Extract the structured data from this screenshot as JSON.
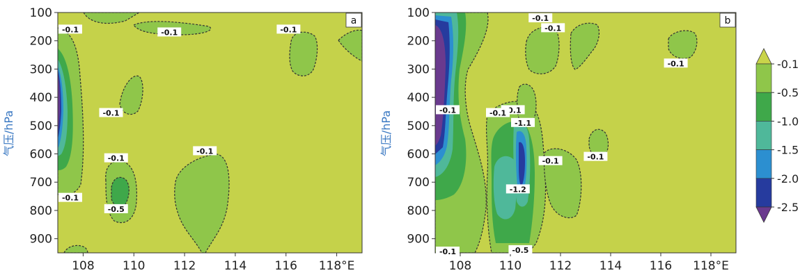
{
  "chart_data": [
    {
      "type": "contour",
      "panel_label": "a",
      "ylabel": "气压/hPa",
      "y_ticks": [
        "100",
        "200",
        "300",
        "400",
        "500",
        "600",
        "700",
        "800",
        "900"
      ],
      "x_ticks": [
        "108",
        "110",
        "112",
        "114",
        "116",
        "118°E"
      ],
      "xlim": [
        107,
        119
      ],
      "ylim": [
        100,
        950
      ],
      "contour_labels": [
        {
          "text": "-0.1",
          "lon": 107.4,
          "p": 160
        },
        {
          "text": "-0.1",
          "lon": 111.4,
          "p": 170
        },
        {
          "text": "-0.1",
          "lon": 116.1,
          "p": 160
        },
        {
          "text": "-0.1",
          "lon": 109.1,
          "p": 455
        },
        {
          "text": "-0.1",
          "lon": 109.3,
          "p": 615
        },
        {
          "text": "-0.1",
          "lon": 112.8,
          "p": 590
        },
        {
          "text": "-0.1",
          "lon": 107.2,
          "p": 755
        },
        {
          "text": "-0.5",
          "lon": 109.3,
          "p": 795
        }
      ]
    },
    {
      "type": "contour",
      "panel_label": "b",
      "ylabel": "气压/hPa",
      "y_ticks": [
        "100",
        "200",
        "300",
        "400",
        "500",
        "600",
        "700",
        "800",
        "900"
      ],
      "x_ticks": [
        "108",
        "110",
        "112",
        "114",
        "116",
        "118°E"
      ],
      "xlim": [
        107,
        119
      ],
      "ylim": [
        100,
        950
      ],
      "contour_labels": [
        {
          "text": "-0.1",
          "lon": 111.2,
          "p": 120
        },
        {
          "text": "-0.1",
          "lon": 111.7,
          "p": 155
        },
        {
          "text": "-0.1",
          "lon": 116.6,
          "p": 280
        },
        {
          "text": "-0.1",
          "lon": 107.4,
          "p": 445
        },
        {
          "text": "-0.1",
          "lon": 110.1,
          "p": 445
        },
        {
          "text": "-1.1",
          "lon": 110.5,
          "p": 490
        },
        {
          "text": "-0.1",
          "lon": 109.5,
          "p": 455
        },
        {
          "text": "-0.1",
          "lon": 111.6,
          "p": 625
        },
        {
          "text": "-0.1",
          "lon": 113.4,
          "p": 610
        },
        {
          "text": "-1.2",
          "lon": 110.3,
          "p": 725
        },
        {
          "text": "-0.5",
          "lon": 110.4,
          "p": 940
        },
        {
          "text": "-0.1",
          "lon": 107.5,
          "p": 950
        }
      ]
    }
  ],
  "colorbar": {
    "labels": [
      "-0.1",
      "-0.5",
      "-1.0",
      "-1.5",
      "-2.0",
      "-2.5"
    ],
    "colors": [
      "#c9d44a",
      "#8fc64a",
      "#3fa84a",
      "#4fb89a",
      "#2c8fd0",
      "#263b9e",
      "#6a3a8e"
    ]
  }
}
